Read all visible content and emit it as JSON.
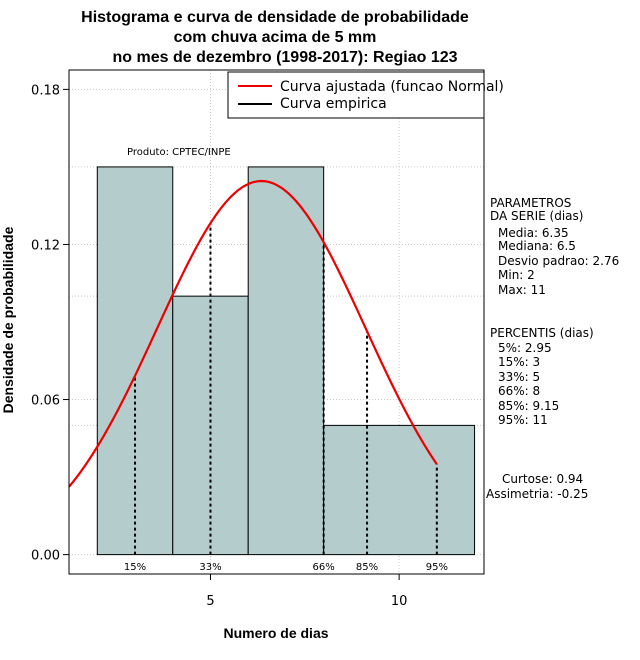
{
  "chart_data": {
    "type": "bar",
    "title_lines": [
      "Histograma e curva de densidade de probabilidade",
      "com chuva acima de 5 mm",
      "no mes de dezembro (1998-2017): Regiao 123"
    ],
    "xlabel": "Numero de dias",
    "ylabel": "Densidade de probabilidade",
    "xlim": [
      1.25,
      12.25
    ],
    "ylim": [
      -0.0075,
      0.1875
    ],
    "x_ticks": [
      5,
      10
    ],
    "y_ticks": [
      0.0,
      0.06,
      0.12,
      0.18
    ],
    "y_tick_labels": [
      "0.00",
      "0.06",
      "0.12",
      "0.18"
    ],
    "grid": true,
    "histogram": {
      "bins": [
        {
          "x0": 2,
          "x1": 4,
          "density": 0.15
        },
        {
          "x0": 4,
          "x1": 6,
          "density": 0.1
        },
        {
          "x0": 6,
          "x1": 8,
          "density": 0.15
        },
        {
          "x0": 8,
          "x1": 12,
          "density": 0.05
        }
      ],
      "color": "#b4cccc"
    },
    "normal_curve": {
      "name": "Curva ajustada (funcao Normal)",
      "mean": 6.35,
      "sd": 2.76,
      "x_range": [
        1.25,
        11
      ],
      "color": "#ee0000"
    },
    "empirical_curve": {
      "name": "Curva empirica",
      "color": "#000000"
    },
    "percentile_markers": [
      {
        "label": "15%",
        "x": 3
      },
      {
        "label": "33%",
        "x": 5
      },
      {
        "label": "66%",
        "x": 8
      },
      {
        "label": "85%",
        "x": 9.15
      },
      {
        "label": "95%",
        "x": 11
      }
    ],
    "legend_position": "top-right",
    "product_note": "Produto: CPTEC/INPE",
    "parametros": {
      "heading": [
        "PARAMETROS",
        "DA SERIE (dias)"
      ],
      "lines": [
        "Media: 6.35",
        "Mediana: 6.5",
        "Desvio padrao: 2.76",
        "Min: 2",
        "Max: 11"
      ]
    },
    "percentis": {
      "heading": "PERCENTIS (dias)",
      "lines": [
        "5%: 2.95",
        "15%: 3",
        "33%: 5",
        "66%: 8",
        "85%: 9.15",
        "95%: 11"
      ]
    },
    "moments": {
      "lines": [
        "Curtose: 0.94",
        "Assimetria: -0.25"
      ]
    }
  }
}
